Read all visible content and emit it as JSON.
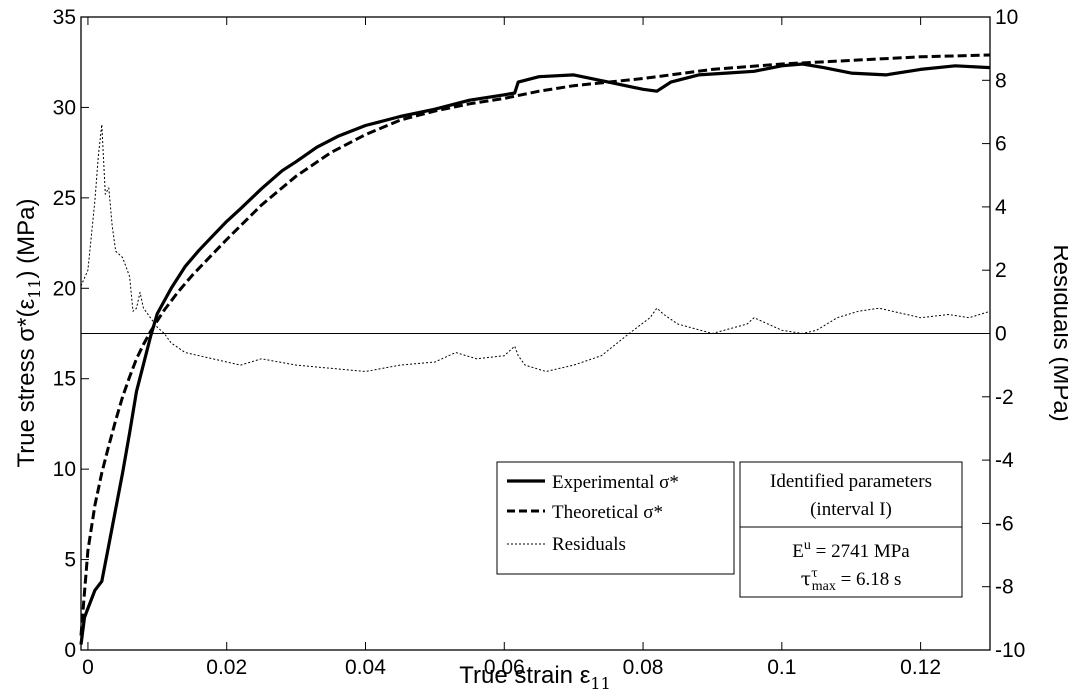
{
  "chart_data": {
    "type": "line",
    "xlabel": "True strain ε",
    "xlabel_sub": "11",
    "ylabel_left": "True stress σ*(ε",
    "ylabel_left_sub": "11",
    "ylabel_left_end": ") (MPa)",
    "ylabel_right": "Residuals (MPa)",
    "xlim": [
      -0.001,
      0.13
    ],
    "ylim_left": [
      0,
      35
    ],
    "ylim_right": [
      -10,
      10
    ],
    "x_ticks": [
      "0",
      "0.02",
      "0.04",
      "0.06",
      "0.08",
      "0.1",
      "0.12"
    ],
    "x_tick_values": [
      0,
      0.02,
      0.04,
      0.06,
      0.08,
      0.1,
      0.12
    ],
    "y_ticks_left": [
      "0",
      "5",
      "10",
      "15",
      "20",
      "25",
      "30",
      "35"
    ],
    "y_tick_values_left": [
      0,
      5,
      10,
      15,
      20,
      25,
      30,
      35
    ],
    "y_ticks_right": [
      "-10",
      "-8",
      "-6",
      "-4",
      "-2",
      "0",
      "2",
      "4",
      "6",
      "8",
      "10"
    ],
    "y_tick_values_right": [
      -10,
      -8,
      -6,
      -4,
      -2,
      0,
      2,
      4,
      6,
      8,
      10
    ],
    "zero_line_right": 0,
    "legend_position": "bottom-right",
    "series": [
      {
        "name": "Experimental σ*",
        "axis": "left",
        "style": "solid-thick",
        "x": [
          -0.001,
          -0.0005,
          0,
          0.001,
          0.002,
          0.003,
          0.004,
          0.005,
          0.006,
          0.007,
          0.008,
          0.009,
          0.01,
          0.011,
          0.012,
          0.014,
          0.016,
          0.018,
          0.02,
          0.022,
          0.025,
          0.028,
          0.03,
          0.033,
          0.036,
          0.04,
          0.042,
          0.045,
          0.05,
          0.055,
          0.06,
          0.0615,
          0.062,
          0.065,
          0.07,
          0.075,
          0.08,
          0.082,
          0.084,
          0.088,
          0.092,
          0.096,
          0.1,
          0.103,
          0.106,
          0.11,
          0.115,
          0.12,
          0.125,
          0.13
        ],
        "y": [
          0.3,
          1.8,
          2.3,
          3.3,
          3.8,
          5.8,
          7.8,
          9.8,
          12.0,
          14.3,
          15.8,
          17.3,
          18.6,
          19.3,
          20.0,
          21.2,
          22.1,
          22.9,
          23.7,
          24.4,
          25.5,
          26.5,
          27.0,
          27.8,
          28.4,
          29.0,
          29.2,
          29.5,
          29.9,
          30.4,
          30.7,
          30.8,
          31.4,
          31.7,
          31.8,
          31.4,
          31.0,
          30.9,
          31.4,
          31.8,
          31.9,
          32.0,
          32.3,
          32.4,
          32.2,
          31.9,
          31.8,
          32.1,
          32.3,
          32.2
        ]
      },
      {
        "name": "Theoretical σ*",
        "axis": "left",
        "style": "dashed",
        "x": [
          -0.001,
          0,
          0.001,
          0.002,
          0.003,
          0.004,
          0.005,
          0.006,
          0.007,
          0.008,
          0.009,
          0.01,
          0.011,
          0.013,
          0.015,
          0.018,
          0.02,
          0.025,
          0.03,
          0.035,
          0.04,
          0.045,
          0.05,
          0.055,
          0.06,
          0.065,
          0.07,
          0.075,
          0.08,
          0.09,
          0.1,
          0.11,
          0.12,
          0.13
        ],
        "y": [
          0.8,
          5.5,
          8.0,
          9.8,
          11.3,
          12.7,
          14.0,
          15.1,
          16.1,
          16.9,
          17.6,
          18.2,
          18.8,
          19.8,
          20.7,
          21.9,
          22.7,
          24.6,
          26.2,
          27.5,
          28.5,
          29.3,
          29.8,
          30.2,
          30.5,
          30.9,
          31.2,
          31.4,
          31.6,
          32.1,
          32.4,
          32.6,
          32.8,
          32.9
        ]
      },
      {
        "name": "Residuals",
        "axis": "right",
        "style": "dotted",
        "x": [
          -0.001,
          0,
          0.001,
          0.0015,
          0.002,
          0.0025,
          0.003,
          0.0035,
          0.004,
          0.005,
          0.006,
          0.0065,
          0.007,
          0.0075,
          0.008,
          0.009,
          0.01,
          0.011,
          0.012,
          0.014,
          0.016,
          0.018,
          0.02,
          0.022,
          0.025,
          0.03,
          0.035,
          0.04,
          0.045,
          0.05,
          0.053,
          0.056,
          0.06,
          0.0615,
          0.062,
          0.063,
          0.066,
          0.07,
          0.074,
          0.078,
          0.081,
          0.082,
          0.083,
          0.085,
          0.09,
          0.095,
          0.096,
          0.1,
          0.103,
          0.105,
          0.108,
          0.111,
          0.114,
          0.118,
          0.12,
          0.124,
          0.127,
          0.13
        ],
        "y": [
          1.5,
          2.0,
          4.2,
          5.6,
          6.6,
          4.4,
          4.6,
          3.4,
          2.6,
          2.4,
          1.8,
          0.7,
          0.8,
          1.3,
          0.8,
          0.5,
          0.2,
          0.0,
          -0.3,
          -0.6,
          -0.7,
          -0.8,
          -0.9,
          -1.0,
          -0.8,
          -1.0,
          -1.1,
          -1.2,
          -1.0,
          -0.9,
          -0.6,
          -0.8,
          -0.7,
          -0.4,
          -0.7,
          -1.0,
          -1.2,
          -1.0,
          -0.7,
          0.0,
          0.5,
          0.8,
          0.6,
          0.3,
          0.0,
          0.3,
          0.5,
          0.1,
          0.0,
          0.1,
          0.5,
          0.7,
          0.8,
          0.6,
          0.5,
          0.6,
          0.5,
          0.7
        ]
      }
    ],
    "legend": {
      "entries": [
        {
          "label": "Experimental σ*",
          "style": "solid-thick"
        },
        {
          "label": "Theoretical σ*",
          "style": "dashed"
        },
        {
          "label": "Residuals",
          "style": "dotted"
        }
      ]
    },
    "params_box": {
      "title_line1": "Identified parameters",
      "title_line2": "(interval I)",
      "eu_base": "E",
      "eu_sup": "u",
      "eu_value": " = 2741 MPa",
      "tau_base": "τ",
      "tau_sup": "τ",
      "tau_sub": "max",
      "tau_value": " = 6.18 s"
    }
  }
}
